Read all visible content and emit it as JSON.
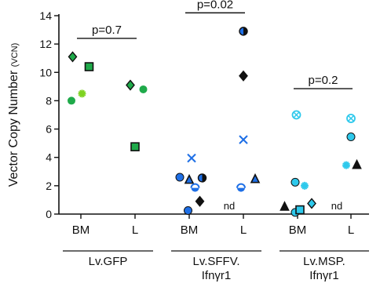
{
  "chart_data": {
    "type": "scatter",
    "ylabel": "Vector Copy Number",
    "ylabel_unit": "(VCN)",
    "ylim": [
      0,
      14
    ],
    "y_ticks": [
      0,
      2,
      4,
      6,
      8,
      10,
      12,
      14
    ],
    "x_categories": [
      "BM",
      "L",
      "BM",
      "L",
      "BM",
      "L"
    ],
    "groups": [
      {
        "label_lines": [
          "Lv.GFP"
        ],
        "covers": [
          0,
          1
        ]
      },
      {
        "label_lines": [
          "Lv.SFFV.",
          "Ifnγr1"
        ],
        "covers": [
          2,
          3
        ]
      },
      {
        "label_lines": [
          "Lv.MSP.",
          "Ifnγr1"
        ],
        "covers": [
          4,
          5
        ]
      }
    ],
    "pvalues": [
      {
        "text": "p=0.7",
        "from": 0,
        "to": 1,
        "y": 12.4
      },
      {
        "text": "p=0.02",
        "from": 2,
        "to": 3,
        "y": 14.2
      },
      {
        "text": "p=0.2",
        "from": 4,
        "to": 5,
        "y": 8.85
      }
    ],
    "annotations": [
      {
        "text": "nd",
        "category": 3,
        "y": 0.6
      },
      {
        "text": "nd",
        "category": 5,
        "y": 0.6
      }
    ],
    "colors": {
      "green": "#1faa4a",
      "lime": "#7ed321",
      "blue": "#1e6fe6",
      "cyan": "#2ec9ec",
      "black": "#111111"
    },
    "points": [
      {
        "category": 0,
        "offset": -0.35,
        "y": 11.1,
        "shape": "diamond",
        "color": "green"
      },
      {
        "category": 0,
        "offset": 0.35,
        "y": 10.4,
        "shape": "square",
        "color": "green"
      },
      {
        "category": 0,
        "offset": 0.05,
        "y": 8.5,
        "shape": "star",
        "color": "lime"
      },
      {
        "category": 0,
        "offset": -0.4,
        "y": 8.0,
        "shape": "circle",
        "color": "green"
      },
      {
        "category": 1,
        "offset": -0.2,
        "y": 9.1,
        "shape": "diamond",
        "color": "green"
      },
      {
        "category": 1,
        "offset": 0.35,
        "y": 8.8,
        "shape": "circle",
        "color": "green"
      },
      {
        "category": 1,
        "offset": 0.0,
        "y": 4.75,
        "shape": "square",
        "color": "green"
      },
      {
        "category": 2,
        "offset": -0.4,
        "y": 2.6,
        "shape": "circle",
        "color": "blue"
      },
      {
        "category": 2,
        "offset": 0.0,
        "y": 2.4,
        "shape": "triangle",
        "color": "blue"
      },
      {
        "category": 2,
        "offset": 0.55,
        "y": 2.55,
        "shape": "halfcircle",
        "color": "blue"
      },
      {
        "category": 2,
        "offset": 0.25,
        "y": 1.85,
        "shape": "semicircle",
        "color": "blue"
      },
      {
        "category": 2,
        "offset": 0.45,
        "y": 0.9,
        "shape": "diamond",
        "color": "black"
      },
      {
        "category": 2,
        "offset": 0.1,
        "y": 3.95,
        "shape": "cross",
        "color": "blue"
      },
      {
        "category": 2,
        "offset": -0.05,
        "y": 0.25,
        "shape": "circle",
        "color": "blue"
      },
      {
        "category": 3,
        "offset": 0.0,
        "y": 12.9,
        "shape": "halfcircle",
        "color": "blue"
      },
      {
        "category": 3,
        "offset": 0.0,
        "y": 9.75,
        "shape": "diamond",
        "color": "black"
      },
      {
        "category": 3,
        "offset": 0.0,
        "y": 5.25,
        "shape": "cross",
        "color": "blue"
      },
      {
        "category": 3,
        "offset": -0.1,
        "y": 1.85,
        "shape": "semicircle",
        "color": "blue"
      },
      {
        "category": 3,
        "offset": 0.5,
        "y": 2.45,
        "shape": "triangle",
        "color": "blue"
      },
      {
        "category": 4,
        "offset": -0.1,
        "y": 2.25,
        "shape": "circle",
        "color": "cyan"
      },
      {
        "category": 4,
        "offset": -0.55,
        "y": 0.5,
        "shape": "triangle",
        "color": "black"
      },
      {
        "category": 4,
        "offset": -0.1,
        "y": 0.12,
        "shape": "circle",
        "color": "cyan"
      },
      {
        "category": 4,
        "offset": 0.1,
        "y": 0.3,
        "shape": "square",
        "color": "cyan"
      },
      {
        "category": 4,
        "offset": 0.3,
        "y": 2.0,
        "shape": "star",
        "color": "cyan"
      },
      {
        "category": 4,
        "offset": 0.6,
        "y": 0.75,
        "shape": "diamond",
        "color": "cyan"
      },
      {
        "category": 4,
        "offset": -0.05,
        "y": 7.0,
        "shape": "crosscircle",
        "color": "cyan"
      },
      {
        "category": 5,
        "offset": 0.0,
        "y": 6.75,
        "shape": "crosscircle",
        "color": "cyan"
      },
      {
        "category": 5,
        "offset": 0.0,
        "y": 5.45,
        "shape": "circle",
        "color": "cyan"
      },
      {
        "category": 5,
        "offset": -0.2,
        "y": 3.45,
        "shape": "star",
        "color": "cyan"
      },
      {
        "category": 5,
        "offset": 0.25,
        "y": 3.45,
        "shape": "triangle",
        "color": "black"
      }
    ]
  }
}
